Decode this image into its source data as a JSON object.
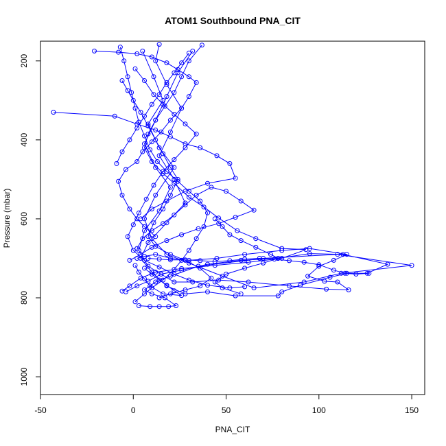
{
  "chart_data": {
    "type": "scatter",
    "title": "ATOM1 Southbound PNA_CIT",
    "xlabel": "PNA_CIT",
    "ylabel": "Pressure (mbar)",
    "xlim": [
      -50,
      157
    ],
    "ylim": [
      1045,
      150
    ],
    "y_reversed": true,
    "x_ticks": [
      "-50",
      "0",
      "50",
      "100",
      "150"
    ],
    "y_ticks": [
      "200",
      "400",
      "600",
      "800",
      "1000"
    ],
    "grid": false,
    "legend": "none",
    "color": "#0000ff",
    "series": [
      {
        "values": [
          [
            3,
            820
          ],
          [
            9,
            822
          ],
          [
            14,
            822
          ],
          [
            19,
            822
          ],
          [
            23,
            820
          ],
          [
            17,
            800
          ],
          [
            10,
            790
          ],
          [
            6,
            780
          ],
          [
            12,
            760
          ],
          [
            20,
            745
          ],
          [
            35,
            720
          ],
          [
            70,
            700
          ],
          [
            110,
            690
          ],
          [
            150,
            718
          ],
          [
            112,
            738
          ],
          [
            92,
            760
          ],
          [
            65,
            775
          ],
          [
            48,
            745
          ],
          [
            30,
            712
          ],
          [
            18,
            690
          ],
          [
            10,
            650
          ],
          [
            6,
            600
          ],
          [
            12,
            540
          ],
          [
            22,
            470
          ],
          [
            14,
            420
          ],
          [
            8,
            360
          ],
          [
            16,
            300
          ],
          [
            11,
            240
          ],
          [
            5,
            175
          ]
        ]
      },
      {
        "values": [
          [
            -4,
            785
          ],
          [
            2,
            770
          ],
          [
            8,
            758
          ],
          [
            15,
            740
          ],
          [
            26,
            730
          ],
          [
            40,
            715
          ],
          [
            58,
            705
          ],
          [
            78,
            700
          ],
          [
            95,
            688
          ],
          [
            113,
            690
          ],
          [
            137,
            715
          ],
          [
            126,
            738
          ],
          [
            115,
            738
          ],
          [
            106,
            748
          ],
          [
            90,
            768
          ],
          [
            80,
            785
          ],
          [
            78,
            795
          ],
          [
            55,
            795
          ],
          [
            40,
            785
          ],
          [
            28,
            790
          ],
          [
            18,
            770
          ],
          [
            10,
            735
          ],
          [
            4,
            700
          ],
          [
            8,
            660
          ],
          [
            18,
            610
          ],
          [
            28,
            560
          ],
          [
            22,
            500
          ],
          [
            14,
            440
          ],
          [
            20,
            380
          ],
          [
            26,
            320
          ],
          [
            18,
            260
          ],
          [
            12,
            200
          ],
          [
            14,
            158
          ]
        ]
      },
      {
        "values": [
          [
            2,
            700
          ],
          [
            6,
            695
          ],
          [
            12,
            690
          ],
          [
            20,
            700
          ],
          [
            30,
            705
          ],
          [
            45,
            700
          ],
          [
            60,
            690
          ],
          [
            80,
            680
          ],
          [
            95,
            675
          ],
          [
            115,
            690
          ],
          [
            108,
            705
          ],
          [
            100,
            720
          ],
          [
            94,
            745
          ],
          [
            103,
            758
          ],
          [
            110,
            760
          ],
          [
            116,
            780
          ],
          [
            104,
            778
          ],
          [
            84,
            770
          ],
          [
            62,
            760
          ],
          [
            46,
            755
          ],
          [
            32,
            760
          ],
          [
            22,
            760
          ],
          [
            15,
            740
          ],
          [
            8,
            720
          ],
          [
            3,
            680
          ],
          [
            6,
            630
          ],
          [
            14,
            580
          ],
          [
            20,
            520
          ],
          [
            12,
            470
          ],
          [
            6,
            410
          ],
          [
            12,
            350
          ],
          [
            18,
            290
          ],
          [
            24,
            230
          ],
          [
            32,
            175
          ]
        ]
      },
      {
        "values": [
          [
            -2,
            705
          ],
          [
            4,
            690
          ],
          [
            10,
            672
          ],
          [
            18,
            655
          ],
          [
            26,
            640
          ],
          [
            35,
            625
          ],
          [
            46,
            612
          ],
          [
            55,
            596
          ],
          [
            65,
            578
          ],
          [
            58,
            555
          ],
          [
            50,
            530
          ],
          [
            42,
            520
          ],
          [
            34,
            540
          ],
          [
            28,
            565
          ],
          [
            22,
            590
          ],
          [
            16,
            612
          ],
          [
            10,
            630
          ],
          [
            5,
            650
          ],
          [
            2,
            675
          ]
        ]
      },
      {
        "values": [
          [
            -43,
            330
          ],
          [
            -10,
            340
          ],
          [
            2,
            360
          ],
          [
            12,
            375
          ],
          [
            20,
            392
          ],
          [
            28,
            410
          ],
          [
            36,
            420
          ],
          [
            45,
            440
          ],
          [
            52,
            460
          ],
          [
            55,
            497
          ],
          [
            40,
            510
          ],
          [
            28,
            530
          ],
          [
            18,
            555
          ],
          [
            10,
            575
          ],
          [
            4,
            600
          ]
        ]
      },
      {
        "values": [
          [
            -21,
            175
          ],
          [
            -8,
            178
          ],
          [
            2,
            182
          ],
          [
            10,
            190
          ],
          [
            18,
            205
          ],
          [
            24,
            222
          ],
          [
            30,
            240
          ],
          [
            34,
            255
          ],
          [
            30,
            290
          ],
          [
            26,
            320
          ],
          [
            20,
            350
          ],
          [
            15,
            380
          ],
          [
            10,
            405
          ],
          [
            5,
            430
          ],
          [
            2,
            455
          ],
          [
            -4,
            475
          ],
          [
            -8,
            505
          ],
          [
            -6,
            540
          ],
          [
            -2,
            575
          ],
          [
            2,
            600
          ],
          [
            6,
            620
          ],
          [
            12,
            645
          ]
        ]
      },
      {
        "values": [
          [
            37,
            160
          ],
          [
            30,
            200
          ],
          [
            26,
            240
          ],
          [
            22,
            280
          ],
          [
            17,
            315
          ],
          [
            12,
            350
          ],
          [
            8,
            385
          ],
          [
            6,
            420
          ],
          [
            10,
            455
          ],
          [
            16,
            485
          ],
          [
            22,
            510
          ],
          [
            30,
            545
          ],
          [
            38,
            570
          ],
          [
            46,
            598
          ],
          [
            56,
            630
          ],
          [
            66,
            650
          ],
          [
            80,
            675
          ],
          [
            93,
            678
          ],
          [
            80,
            700
          ],
          [
            62,
            710
          ],
          [
            44,
            718
          ],
          [
            26,
            726
          ],
          [
            12,
            735
          ],
          [
            4,
            750
          ],
          [
            -2,
            770
          ],
          [
            -6,
            783
          ]
        ]
      },
      {
        "values": [
          [
            -7,
            165
          ],
          [
            -5,
            200
          ],
          [
            -3,
            240
          ],
          [
            -1,
            280
          ],
          [
            1,
            320
          ],
          [
            3,
            355
          ],
          [
            6,
            390
          ],
          [
            9,
            425
          ],
          [
            13,
            455
          ],
          [
            18,
            480
          ],
          [
            24,
            505
          ],
          [
            30,
            530
          ],
          [
            36,
            555
          ],
          [
            40,
            585
          ],
          [
            38,
            620
          ],
          [
            34,
            650
          ],
          [
            30,
            680
          ],
          [
            26,
            705
          ],
          [
            22,
            728
          ],
          [
            16,
            755
          ],
          [
            10,
            775
          ],
          [
            6,
            790
          ],
          [
            1,
            810
          ]
        ]
      },
      {
        "values": [
          [
            -6,
            250
          ],
          [
            -3,
            275
          ],
          [
            0,
            300
          ],
          [
            4,
            330
          ],
          [
            8,
            365
          ],
          [
            12,
            400
          ],
          [
            16,
            435
          ],
          [
            20,
            470
          ],
          [
            24,
            500
          ],
          [
            20,
            540
          ],
          [
            16,
            575
          ],
          [
            11,
            610
          ],
          [
            8,
            645
          ],
          [
            12,
            670
          ],
          [
            20,
            690
          ],
          [
            28,
            705
          ],
          [
            36,
            725
          ],
          [
            42,
            750
          ],
          [
            36,
            770
          ],
          [
            28,
            780
          ],
          [
            20,
            790
          ],
          [
            14,
            800
          ]
        ]
      },
      {
        "values": [
          [
            1,
            220
          ],
          [
            6,
            250
          ],
          [
            11,
            285
          ],
          [
            16,
            310
          ],
          [
            22,
            335
          ],
          [
            28,
            360
          ],
          [
            34,
            385
          ],
          [
            28,
            420
          ],
          [
            22,
            450
          ],
          [
            16,
            480
          ],
          [
            11,
            515
          ],
          [
            7,
            550
          ],
          [
            3,
            585
          ],
          [
            0,
            615
          ],
          [
            -3,
            645
          ],
          [
            0,
            680
          ],
          [
            6,
            705
          ],
          [
            14,
            722
          ],
          [
            22,
            740
          ],
          [
            30,
            755
          ],
          [
            40,
            768
          ],
          [
            52,
            775
          ],
          [
            60,
            772
          ]
        ]
      },
      {
        "values": [
          [
            -9,
            460
          ],
          [
            -6,
            430
          ],
          [
            -2,
            400
          ],
          [
            2,
            370
          ],
          [
            6,
            340
          ],
          [
            10,
            310
          ],
          [
            14,
            285
          ],
          [
            18,
            255
          ],
          [
            22,
            230
          ],
          [
            26,
            205
          ],
          [
            30,
            180
          ]
        ]
      },
      {
        "values": [
          [
            44,
            600
          ],
          [
            48,
            620
          ],
          [
            52,
            640
          ],
          [
            58,
            655
          ],
          [
            66,
            672
          ],
          [
            74,
            690
          ],
          [
            78,
            700
          ],
          [
            70,
            712
          ],
          [
            60,
            725
          ],
          [
            50,
            740
          ],
          [
            44,
            760
          ],
          [
            48,
            775
          ],
          [
            58,
            790
          ]
        ]
      },
      {
        "values": [
          [
            8,
            700
          ],
          [
            14,
            702
          ],
          [
            20,
            704
          ],
          [
            28,
            704
          ],
          [
            36,
            706
          ],
          [
            44,
            708
          ],
          [
            52,
            706
          ],
          [
            60,
            702
          ],
          [
            68,
            700
          ],
          [
            76,
            702
          ],
          [
            84,
            706
          ],
          [
            92,
            710
          ],
          [
            100,
            716
          ],
          [
            108,
            730
          ],
          [
            114,
            738
          ],
          [
            120,
            740
          ],
          [
            127,
            738
          ]
        ]
      },
      {
        "values": [
          [
            6,
            725
          ],
          [
            10,
            740
          ],
          [
            14,
            755
          ],
          [
            18,
            768
          ],
          [
            22,
            782
          ],
          [
            26,
            794
          ],
          [
            16,
            790
          ],
          [
            9,
            770
          ],
          [
            6,
            752
          ],
          [
            3,
            735
          ],
          [
            1,
            718
          ]
        ]
      }
    ]
  }
}
